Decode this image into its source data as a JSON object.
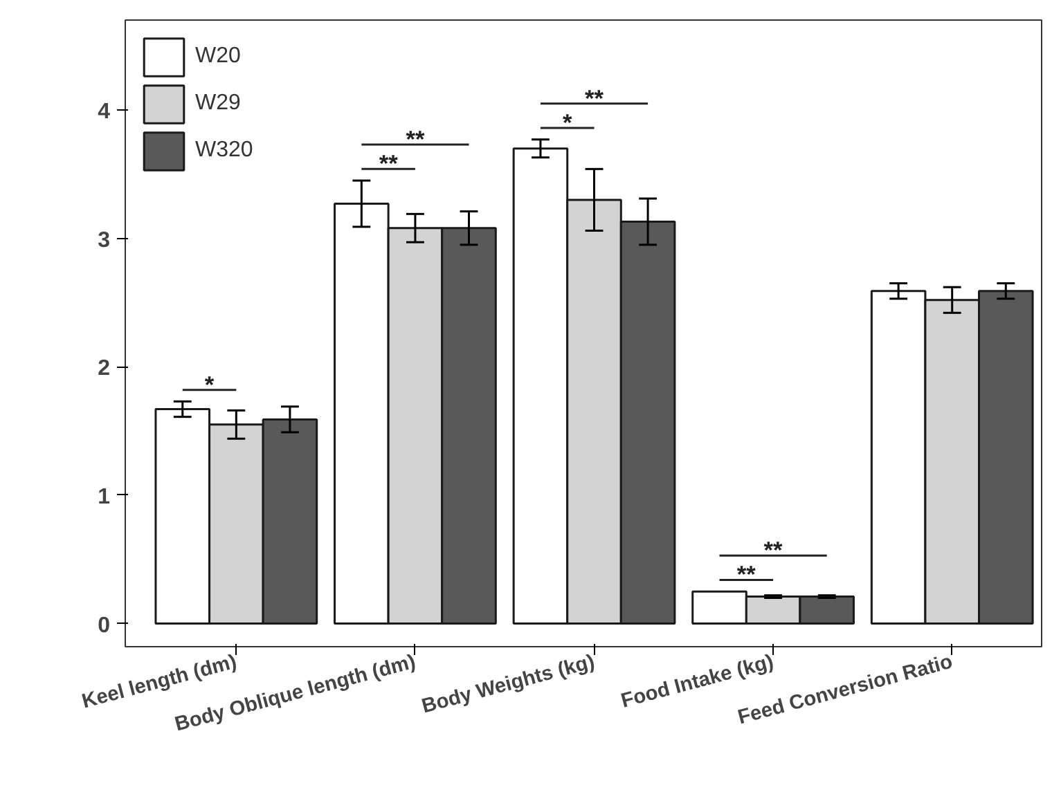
{
  "chart_data": {
    "type": "bar",
    "categories": [
      "Keel length (dm)",
      "Body Oblique length (dm)",
      "Body Weights (kg)",
      "Food Intake (kg)",
      "Feed Conversion Ratio"
    ],
    "series": [
      {
        "name": "W20",
        "color": "#ffffff",
        "values": [
          1.67,
          3.27,
          3.7,
          0.25,
          2.59
        ],
        "errors": [
          0.06,
          0.18,
          0.07,
          null,
          0.06
        ]
      },
      {
        "name": "W29",
        "color": "#d3d3d3",
        "values": [
          1.55,
          3.08,
          3.3,
          0.21,
          2.52
        ],
        "errors": [
          0.11,
          0.11,
          0.24,
          0.01,
          0.1
        ]
      },
      {
        "name": "W320",
        "color": "#595959",
        "values": [
          1.59,
          3.08,
          3.13,
          0.21,
          2.59
        ],
        "errors": [
          0.1,
          0.13,
          0.18,
          0.01,
          0.06
        ]
      }
    ],
    "annotations": [
      "*",
      "**",
      "**",
      "*",
      "**",
      "**",
      "**"
    ],
    "ylim": [
      -0.18,
      4.7
    ],
    "yticks": [
      0,
      1,
      2,
      3,
      4
    ],
    "grid": false,
    "legend": "top left"
  }
}
